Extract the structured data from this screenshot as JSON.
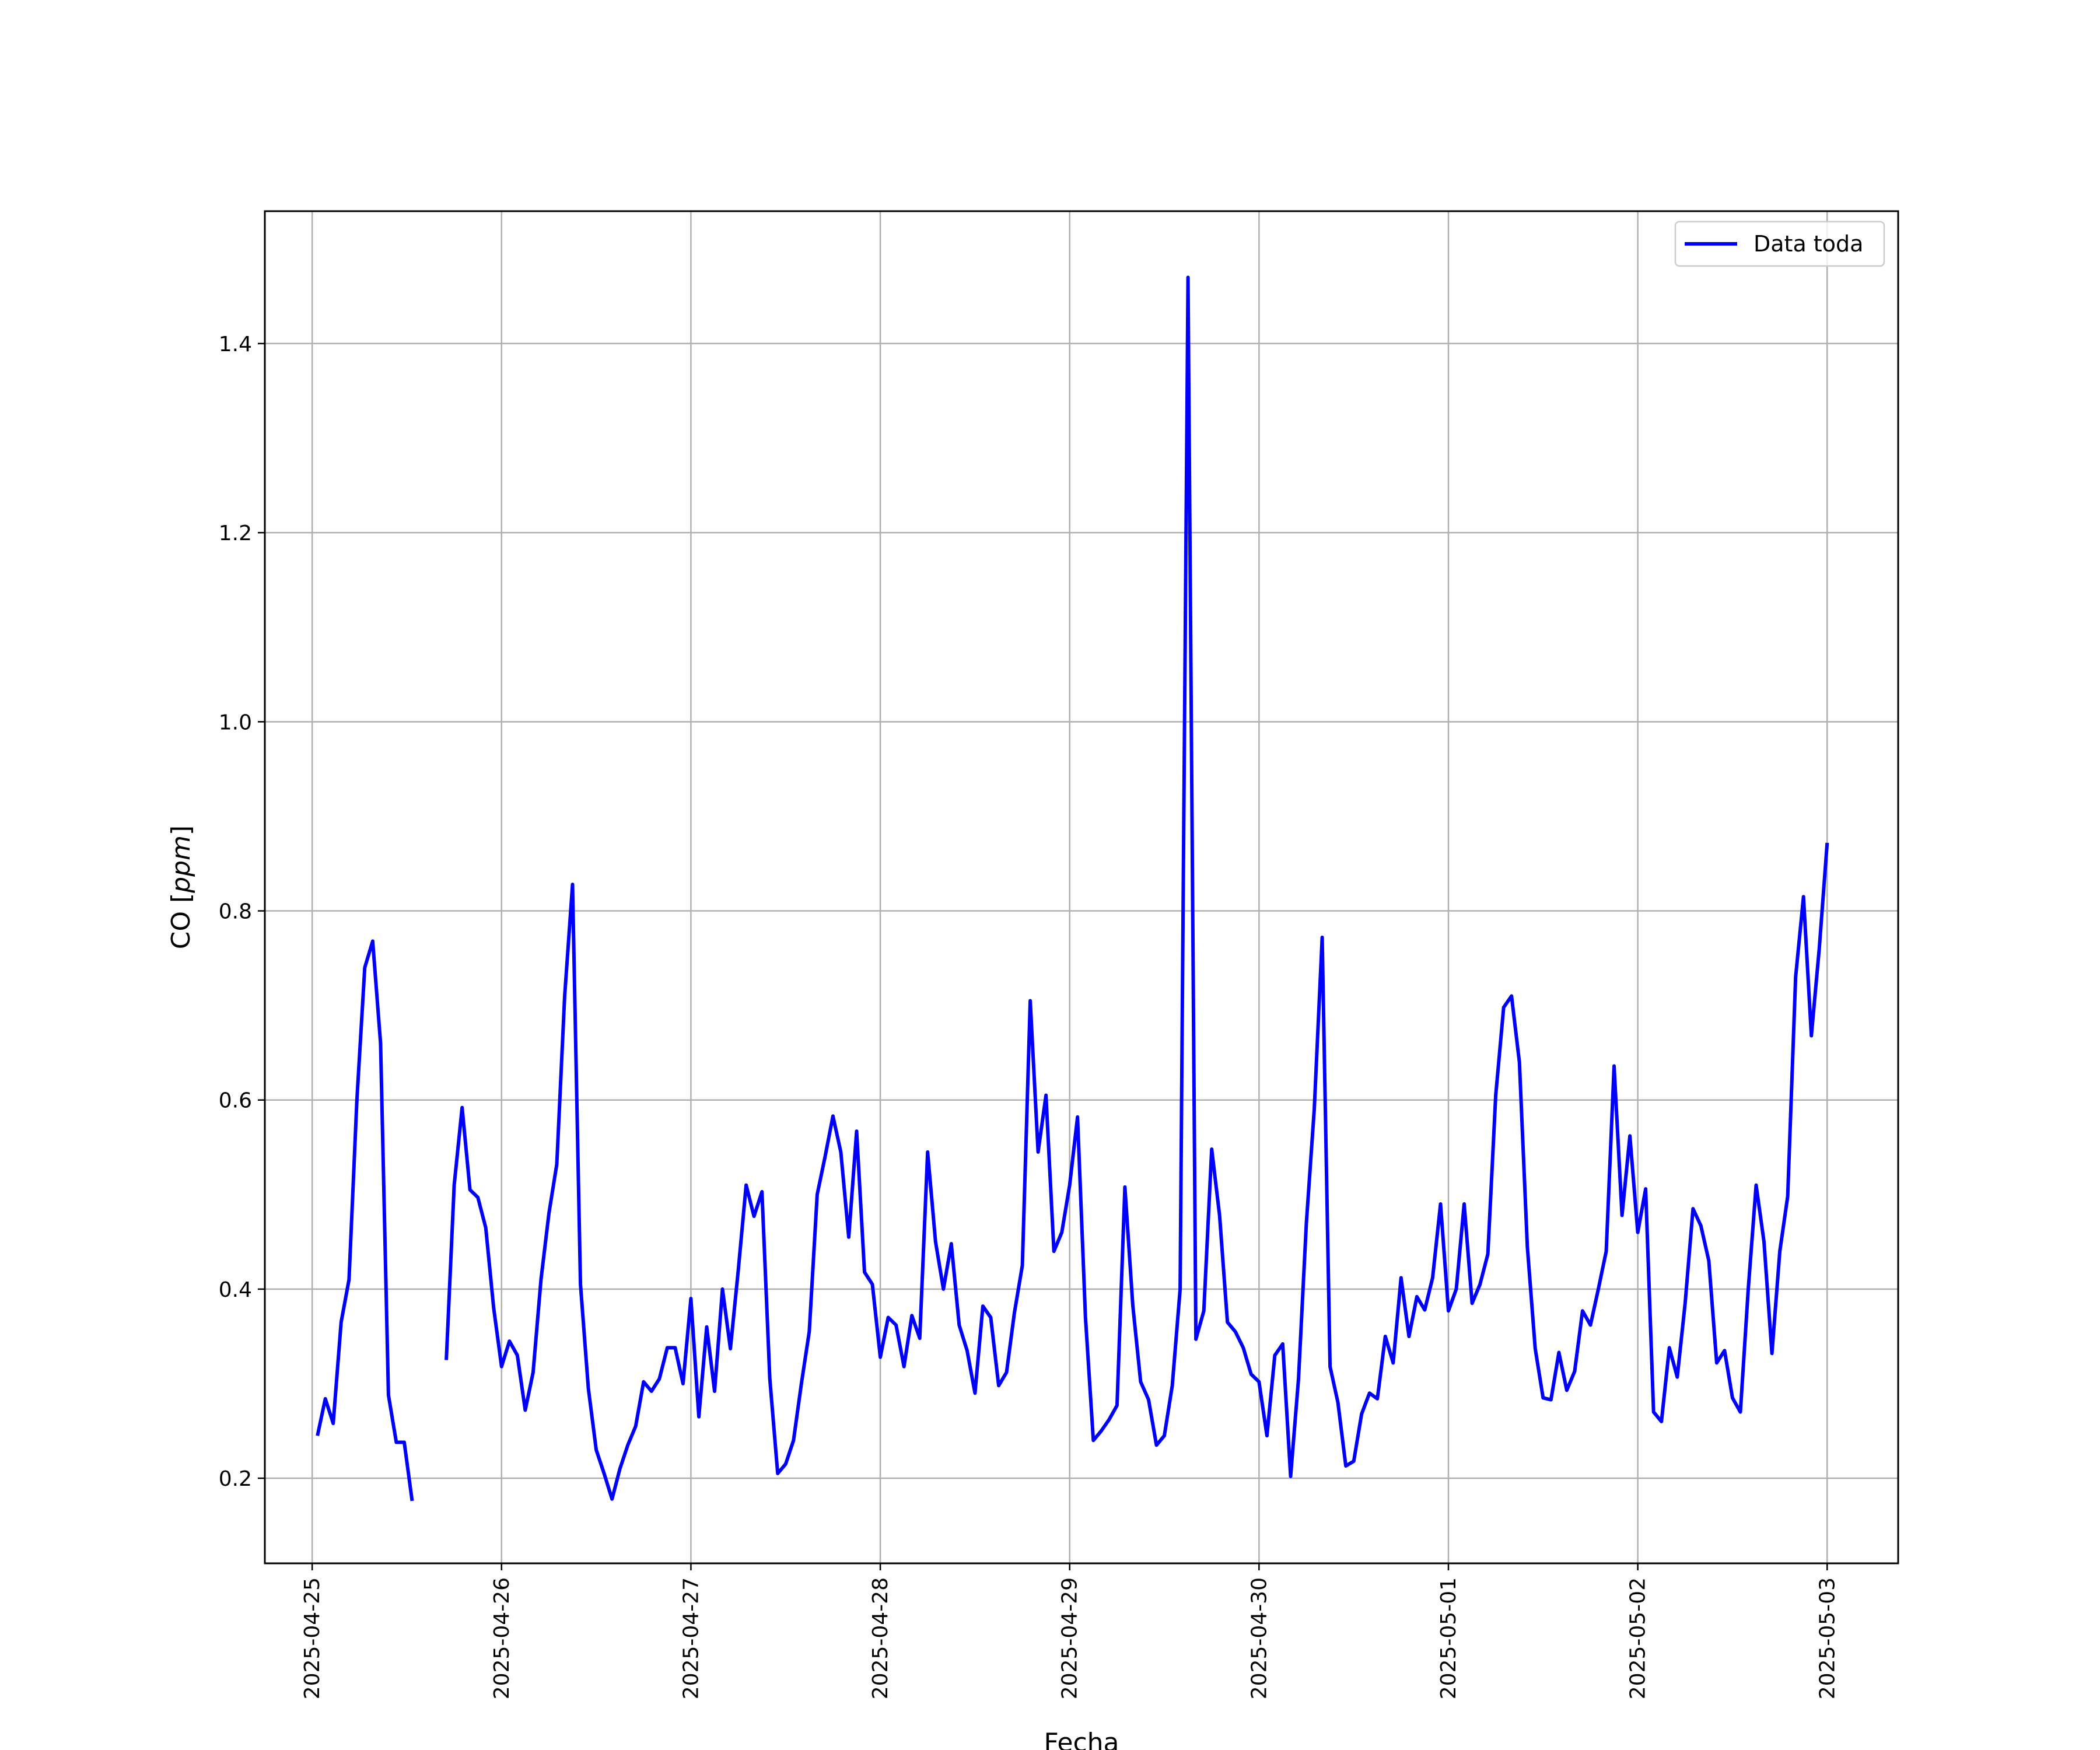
{
  "chart_data": {
    "type": "line",
    "title": "",
    "xlabel": "Fecha",
    "ylabel_prefix": "CO [",
    "ylabel_unit": "ppm",
    "ylabel_suffix": "]",
    "xlim": [
      "2025-04-24T18:00",
      "2025-05-03T09:00"
    ],
    "ylim": [
      0.11,
      1.54
    ],
    "x_ticks": [
      "2025-04-25",
      "2025-04-26",
      "2025-04-27",
      "2025-04-28",
      "2025-04-29",
      "2025-04-30",
      "2025-05-01",
      "2025-05-02",
      "2025-05-03"
    ],
    "y_ticks": [
      0.2,
      0.4,
      0.6,
      0.8,
      1.0,
      1.2,
      1.4
    ],
    "y_tick_labels": [
      "0.2",
      "0.4",
      "0.6",
      "0.8",
      "1.0",
      "1.2",
      "1.4"
    ],
    "grid": true,
    "legend": "top-right",
    "series": [
      {
        "name": "Data toda",
        "color": "#0000ff",
        "points": [
          [
            "2025-04-25T00:40",
            0.245
          ],
          [
            "2025-04-25T01:40",
            0.284
          ],
          [
            "2025-04-25T02:40",
            0.258
          ],
          [
            "2025-04-25T03:40",
            0.365
          ],
          [
            "2025-04-25T04:40",
            0.41
          ],
          [
            "2025-04-25T05:40",
            0.6
          ],
          [
            "2025-04-25T06:40",
            0.74
          ],
          [
            "2025-04-25T07:40",
            0.768
          ],
          [
            "2025-04-25T08:40",
            0.66
          ],
          [
            "2025-04-25T09:40",
            0.288
          ],
          [
            "2025-04-25T10:40",
            0.238
          ],
          [
            "2025-04-25T11:40",
            0.238
          ],
          [
            "2025-04-25T12:40",
            0.176
          ],
          null,
          [
            "2025-04-25T17:00",
            0.325
          ],
          [
            "2025-04-25T18:00",
            0.51
          ],
          [
            "2025-04-25T19:00",
            0.592
          ],
          [
            "2025-04-25T20:00",
            0.505
          ],
          [
            "2025-04-25T21:00",
            0.497
          ],
          [
            "2025-04-25T22:00",
            0.465
          ],
          [
            "2025-04-25T23:00",
            0.38
          ],
          [
            "2025-04-26T00:00",
            0.318
          ],
          [
            "2025-04-26T01:00",
            0.345
          ],
          [
            "2025-04-26T02:00",
            0.33
          ],
          [
            "2025-04-26T03:00",
            0.272
          ],
          [
            "2025-04-26T04:00",
            0.312
          ],
          [
            "2025-04-26T05:00",
            0.41
          ],
          [
            "2025-04-26T06:00",
            0.48
          ],
          [
            "2025-04-26T07:00",
            0.532
          ],
          [
            "2025-04-26T08:00",
            0.71
          ],
          [
            "2025-04-26T09:00",
            0.828
          ],
          [
            "2025-04-26T10:00",
            0.405
          ],
          [
            "2025-04-26T11:00",
            0.295
          ],
          [
            "2025-04-26T12:00",
            0.23
          ],
          [
            "2025-04-26T13:00",
            0.205
          ],
          [
            "2025-04-26T14:00",
            0.178
          ],
          [
            "2025-04-26T15:00",
            0.21
          ],
          [
            "2025-04-26T16:00",
            0.235
          ],
          [
            "2025-04-26T17:00",
            0.255
          ],
          [
            "2025-04-26T18:00",
            0.302
          ],
          [
            "2025-04-26T19:00",
            0.292
          ],
          [
            "2025-04-26T20:00",
            0.305
          ],
          [
            "2025-04-26T21:00",
            0.338
          ],
          [
            "2025-04-26T22:00",
            0.338
          ],
          [
            "2025-04-26T23:00",
            0.3
          ],
          [
            "2025-04-27T00:00",
            0.39
          ],
          [
            "2025-04-27T01:00",
            0.265
          ],
          [
            "2025-04-27T02:00",
            0.36
          ],
          [
            "2025-04-27T03:00",
            0.292
          ],
          [
            "2025-04-27T04:00",
            0.4
          ],
          [
            "2025-04-27T05:00",
            0.337
          ],
          [
            "2025-04-27T06:00",
            0.42
          ],
          [
            "2025-04-27T07:00",
            0.51
          ],
          [
            "2025-04-27T08:00",
            0.477
          ],
          [
            "2025-04-27T09:00",
            0.503
          ],
          [
            "2025-04-27T10:00",
            0.305
          ],
          [
            "2025-04-27T11:00",
            0.205
          ],
          [
            "2025-04-27T12:00",
            0.215
          ],
          [
            "2025-04-27T13:00",
            0.24
          ],
          [
            "2025-04-27T14:00",
            0.3
          ],
          [
            "2025-04-27T15:00",
            0.355
          ],
          [
            "2025-04-27T16:00",
            0.5
          ],
          [
            "2025-04-27T17:00",
            0.54
          ],
          [
            "2025-04-27T18:00",
            0.583
          ],
          [
            "2025-04-27T19:00",
            0.545
          ],
          [
            "2025-04-27T20:00",
            0.455
          ],
          [
            "2025-04-27T21:00",
            0.567
          ],
          [
            "2025-04-27T22:00",
            0.418
          ],
          [
            "2025-04-27T23:00",
            0.405
          ],
          [
            "2025-04-28T00:00",
            0.328
          ],
          [
            "2025-04-28T01:00",
            0.37
          ],
          [
            "2025-04-28T02:00",
            0.362
          ],
          [
            "2025-04-28T03:00",
            0.318
          ],
          [
            "2025-04-28T04:00",
            0.372
          ],
          [
            "2025-04-28T05:00",
            0.348
          ],
          [
            "2025-04-28T06:00",
            0.545
          ],
          [
            "2025-04-28T07:00",
            0.45
          ],
          [
            "2025-04-28T08:00",
            0.4
          ],
          [
            "2025-04-28T09:00",
            0.448
          ],
          [
            "2025-04-28T10:00",
            0.362
          ],
          [
            "2025-04-28T11:00",
            0.335
          ],
          [
            "2025-04-28T12:00",
            0.29
          ],
          [
            "2025-04-28T13:00",
            0.382
          ],
          [
            "2025-04-28T14:00",
            0.37
          ],
          [
            "2025-04-28T15:00",
            0.298
          ],
          [
            "2025-04-28T16:00",
            0.312
          ],
          [
            "2025-04-28T17:00",
            0.375
          ],
          [
            "2025-04-28T18:00",
            0.425
          ],
          [
            "2025-04-28T19:00",
            0.705
          ],
          [
            "2025-04-28T20:00",
            0.545
          ],
          [
            "2025-04-28T21:00",
            0.605
          ],
          [
            "2025-04-28T22:00",
            0.44
          ],
          [
            "2025-04-28T23:00",
            0.46
          ],
          [
            "2025-04-29T00:00",
            0.51
          ],
          [
            "2025-04-29T01:00",
            0.582
          ],
          [
            "2025-04-29T02:00",
            0.37
          ],
          [
            "2025-04-29T03:00",
            0.24
          ],
          [
            "2025-04-29T04:00",
            0.25
          ],
          [
            "2025-04-29T05:00",
            0.262
          ],
          [
            "2025-04-29T06:00",
            0.277
          ],
          [
            "2025-04-29T07:00",
            0.508
          ],
          [
            "2025-04-29T08:00",
            0.383
          ],
          [
            "2025-04-29T09:00",
            0.302
          ],
          [
            "2025-04-29T10:00",
            0.283
          ],
          [
            "2025-04-29T11:00",
            0.235
          ],
          [
            "2025-04-29T12:00",
            0.245
          ],
          [
            "2025-04-29T13:00",
            0.298
          ],
          [
            "2025-04-29T14:00",
            0.4
          ],
          [
            "2025-04-29T15:00",
            1.47
          ],
          [
            "2025-04-29T16:00",
            0.347
          ],
          [
            "2025-04-29T17:00",
            0.377
          ],
          [
            "2025-04-29T18:00",
            0.548
          ],
          [
            "2025-04-29T19:00",
            0.478
          ],
          [
            "2025-04-29T20:00",
            0.365
          ],
          [
            "2025-04-29T21:00",
            0.355
          ],
          [
            "2025-04-29T22:00",
            0.338
          ],
          [
            "2025-04-29T23:00",
            0.31
          ],
          [
            "2025-04-30T00:00",
            0.302
          ],
          [
            "2025-04-30T01:00",
            0.245
          ],
          [
            "2025-04-30T02:00",
            0.33
          ],
          [
            "2025-04-30T03:00",
            0.342
          ],
          [
            "2025-04-30T04:00",
            0.202
          ],
          [
            "2025-04-30T05:00",
            0.305
          ],
          [
            "2025-04-30T06:00",
            0.47
          ],
          [
            "2025-04-30T07:00",
            0.59
          ],
          [
            "2025-04-30T08:00",
            0.772
          ],
          [
            "2025-04-30T09:00",
            0.318
          ],
          [
            "2025-04-30T10:00",
            0.28
          ],
          [
            "2025-04-30T11:00",
            0.213
          ],
          [
            "2025-04-30T12:00",
            0.218
          ],
          [
            "2025-04-30T13:00",
            0.268
          ],
          [
            "2025-04-30T14:00",
            0.29
          ],
          [
            "2025-04-30T15:00",
            0.284
          ],
          [
            "2025-04-30T16:00",
            0.35
          ],
          [
            "2025-04-30T17:00",
            0.322
          ],
          [
            "2025-04-30T18:00",
            0.412
          ],
          [
            "2025-04-30T19:00",
            0.35
          ],
          [
            "2025-04-30T20:00",
            0.392
          ],
          [
            "2025-04-30T21:00",
            0.378
          ],
          [
            "2025-04-30T22:00",
            0.412
          ],
          [
            "2025-04-30T23:00",
            0.49
          ],
          [
            "2025-05-01T00:00",
            0.377
          ],
          [
            "2025-05-01T01:00",
            0.4
          ],
          [
            "2025-05-01T02:00",
            0.49
          ],
          [
            "2025-05-01T03:00",
            0.385
          ],
          [
            "2025-05-01T04:00",
            0.405
          ],
          [
            "2025-05-01T05:00",
            0.437
          ],
          [
            "2025-05-01T06:00",
            0.605
          ],
          [
            "2025-05-01T07:00",
            0.698
          ],
          [
            "2025-05-01T08:00",
            0.71
          ],
          [
            "2025-05-01T09:00",
            0.64
          ],
          [
            "2025-05-01T10:00",
            0.445
          ],
          [
            "2025-05-01T11:00",
            0.337
          ],
          [
            "2025-05-01T12:00",
            0.285
          ],
          [
            "2025-05-01T13:00",
            0.283
          ],
          [
            "2025-05-01T14:00",
            0.333
          ],
          [
            "2025-05-01T15:00",
            0.293
          ],
          [
            "2025-05-01T16:00",
            0.313
          ],
          [
            "2025-05-01T17:00",
            0.377
          ],
          [
            "2025-05-01T18:00",
            0.362
          ],
          [
            "2025-05-01T19:00",
            0.4
          ],
          [
            "2025-05-01T20:00",
            0.44
          ],
          [
            "2025-05-01T21:00",
            0.636
          ],
          [
            "2025-05-01T22:00",
            0.478
          ],
          [
            "2025-05-01T23:00",
            0.562
          ],
          [
            "2025-05-02T00:00",
            0.46
          ],
          [
            "2025-05-02T01:00",
            0.506
          ],
          [
            "2025-05-02T02:00",
            0.27
          ],
          [
            "2025-05-02T03:00",
            0.26
          ],
          [
            "2025-05-02T04:00",
            0.338
          ],
          [
            "2025-05-02T05:00",
            0.307
          ],
          [
            "2025-05-02T06:00",
            0.385
          ],
          [
            "2025-05-02T07:00",
            0.485
          ],
          [
            "2025-05-02T08:00",
            0.467
          ],
          [
            "2025-05-02T09:00",
            0.43
          ],
          [
            "2025-05-02T10:00",
            0.322
          ],
          [
            "2025-05-02T11:00",
            0.335
          ],
          [
            "2025-05-02T12:00",
            0.285
          ],
          [
            "2025-05-02T13:00",
            0.27
          ],
          [
            "2025-05-02T14:00",
            0.4
          ],
          [
            "2025-05-02T15:00",
            0.51
          ],
          [
            "2025-05-02T16:00",
            0.45
          ],
          [
            "2025-05-02T17:00",
            0.332
          ],
          [
            "2025-05-02T18:00",
            0.44
          ],
          [
            "2025-05-02T19:00",
            0.498
          ],
          [
            "2025-05-02T20:00",
            0.73
          ],
          [
            "2025-05-02T21:00",
            0.815
          ],
          [
            "2025-05-02T22:00",
            0.668
          ],
          [
            "2025-05-02T23:00",
            0.76
          ],
          [
            "2025-05-03T00:00",
            0.872
          ]
        ]
      }
    ]
  }
}
